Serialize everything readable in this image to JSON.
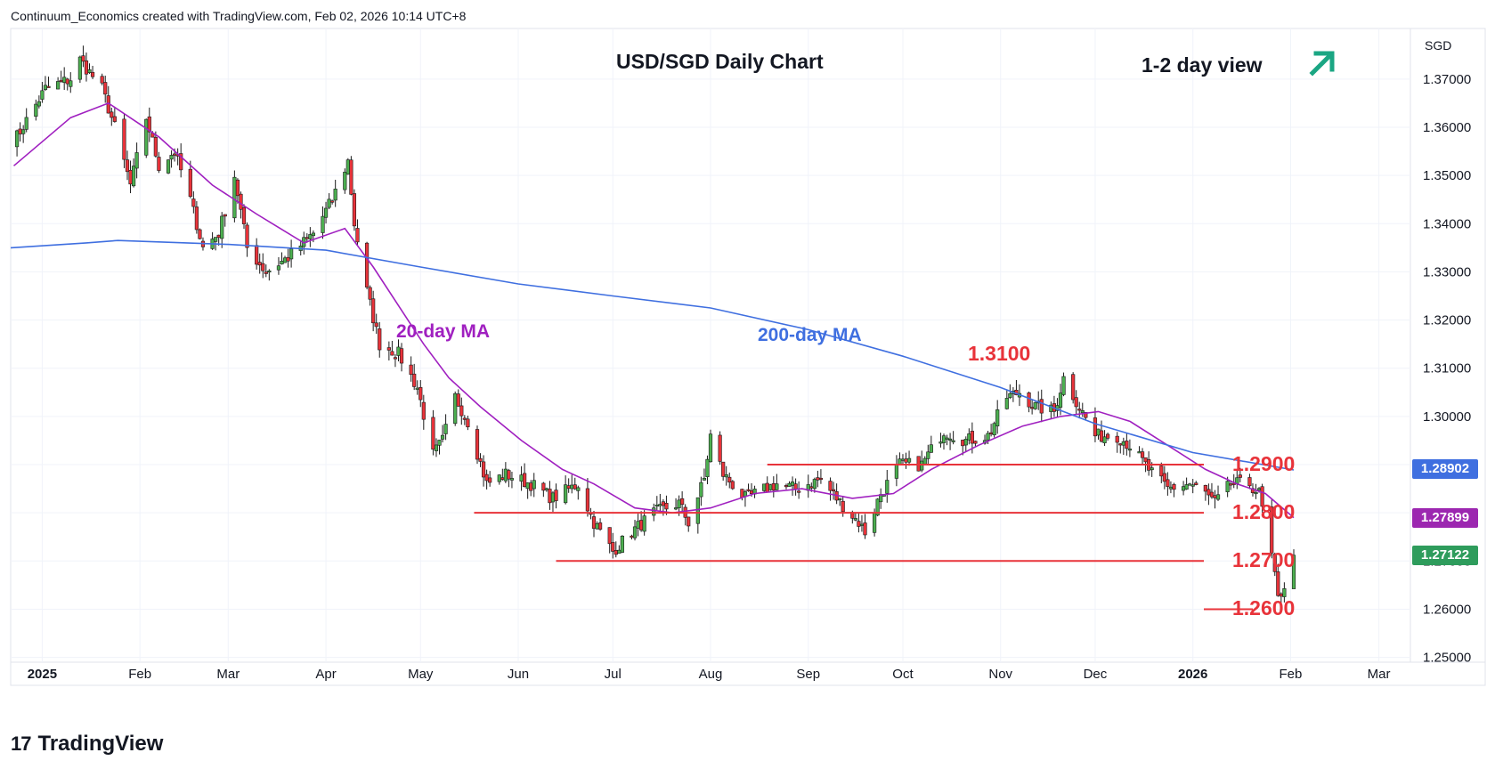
{
  "header": {
    "attribution": "Continuum_Economics created with TradingView.com, Feb 02, 2026 10:14 UTC+8"
  },
  "chart_header": {
    "title": "USD/SGD Daily Chart",
    "view_label": "1-2 day view",
    "view_icon": "arrow-up-right-icon"
  },
  "brand": {
    "name": "TradingView",
    "logo_text": "17"
  },
  "colors": {
    "up_candle": "#4caf50",
    "down_candle": "#e8333a",
    "ma20": "#a020c0",
    "ma200": "#3f6fe0",
    "level_line": "#e8333a",
    "arrow": "#1aa683",
    "price_badge": "#2e9c5c",
    "ma200_badge": "#3f6fe0",
    "ma20_badge": "#9c27b0"
  },
  "chart_data": {
    "type": "candlestick",
    "title": "USD/SGD Daily Chart",
    "price_scale_unit": "SGD",
    "ylim": [
      1.249,
      1.3805
    ],
    "y_ticks": [
      "1.37000",
      "1.36000",
      "1.35000",
      "1.34000",
      "1.33000",
      "1.32000",
      "1.31000",
      "1.30000",
      "1.29000",
      "1.28000",
      "1.27000",
      "1.26000",
      "1.25000"
    ],
    "x_ticks": [
      "2025",
      "Feb",
      "Mar",
      "Apr",
      "May",
      "Jun",
      "Jul",
      "Aug",
      "Sep",
      "Oct",
      "Nov",
      "Dec",
      "2026",
      "Feb",
      "Mar"
    ],
    "x_tick_dates": [
      "2025-01-01",
      "2025-02-01",
      "2025-03-01",
      "2025-04-01",
      "2025-05-01",
      "2025-06-01",
      "2025-07-01",
      "2025-08-01",
      "2025-09-01",
      "2025-10-01",
      "2025-11-01",
      "2025-12-01",
      "2026-01-01",
      "2026-02-01",
      "2026-03-01"
    ],
    "x_range": [
      "2024-12-22",
      "2026-03-11"
    ],
    "price_path": [
      [
        "2024-12-23",
        1.357
      ],
      [
        "2025-01-02",
        1.368
      ],
      [
        "2025-01-10",
        1.37
      ],
      [
        "2025-01-13",
        1.374
      ],
      [
        "2025-01-20",
        1.368
      ],
      [
        "2025-01-24",
        1.36
      ],
      [
        "2025-01-29",
        1.348
      ],
      [
        "2025-02-03",
        1.362
      ],
      [
        "2025-02-07",
        1.352
      ],
      [
        "2025-02-12",
        1.355
      ],
      [
        "2025-02-17",
        1.345
      ],
      [
        "2025-02-21",
        1.335
      ],
      [
        "2025-02-26",
        1.338
      ],
      [
        "2025-03-03",
        1.35
      ],
      [
        "2025-03-07",
        1.335
      ],
      [
        "2025-03-13",
        1.33
      ],
      [
        "2025-03-20",
        1.333
      ],
      [
        "2025-03-28",
        1.338
      ],
      [
        "2025-04-03",
        1.345
      ],
      [
        "2025-04-08",
        1.353
      ],
      [
        "2025-04-10",
        1.34
      ],
      [
        "2025-04-14",
        1.326
      ],
      [
        "2025-04-18",
        1.315
      ],
      [
        "2025-04-24",
        1.313
      ],
      [
        "2025-04-30",
        1.306
      ],
      [
        "2025-05-05",
        1.292
      ],
      [
        "2025-05-08",
        1.295
      ],
      [
        "2025-05-12",
        1.304
      ],
      [
        "2025-05-16",
        1.299
      ],
      [
        "2025-05-22",
        1.286
      ],
      [
        "2025-05-28",
        1.288
      ],
      [
        "2025-06-05",
        1.286
      ],
      [
        "2025-06-12",
        1.283
      ],
      [
        "2025-06-20",
        1.286
      ],
      [
        "2025-06-25",
        1.278
      ],
      [
        "2025-07-01",
        1.272
      ],
      [
        "2025-07-07",
        1.276
      ],
      [
        "2025-07-14",
        1.28
      ],
      [
        "2025-07-22",
        1.282
      ],
      [
        "2025-07-25",
        1.278
      ],
      [
        "2025-07-30",
        1.287
      ],
      [
        "2025-08-01",
        1.296
      ],
      [
        "2025-08-05",
        1.288
      ],
      [
        "2025-08-12",
        1.283
      ],
      [
        "2025-08-22",
        1.286
      ],
      [
        "2025-08-28",
        1.285
      ],
      [
        "2025-09-05",
        1.287
      ],
      [
        "2025-09-10",
        1.283
      ],
      [
        "2025-09-17",
        1.278
      ],
      [
        "2025-09-19",
        1.276
      ],
      [
        "2025-09-24",
        1.284
      ],
      [
        "2025-09-30",
        1.29
      ],
      [
        "2025-10-07",
        1.29
      ],
      [
        "2025-10-14",
        1.297
      ],
      [
        "2025-10-21",
        1.295
      ],
      [
        "2025-10-28",
        1.296
      ],
      [
        "2025-11-03",
        1.304
      ],
      [
        "2025-11-07",
        1.305
      ],
      [
        "2025-11-12",
        1.302
      ],
      [
        "2025-11-18",
        1.301
      ],
      [
        "2025-11-21",
        1.308
      ],
      [
        "2025-11-26",
        1.302
      ],
      [
        "2025-12-01",
        1.296
      ],
      [
        "2025-12-08",
        1.296
      ],
      [
        "2025-12-12",
        1.294
      ],
      [
        "2025-12-18",
        1.289
      ],
      [
        "2025-12-24",
        1.285
      ],
      [
        "2025-12-31",
        1.286
      ],
      [
        "2026-01-05",
        1.284
      ],
      [
        "2026-01-08",
        1.282
      ],
      [
        "2026-01-13",
        1.286
      ],
      [
        "2026-01-19",
        1.286
      ],
      [
        "2026-01-22",
        1.284
      ],
      [
        "2026-01-26",
        1.271
      ],
      [
        "2026-01-28",
        1.262
      ],
      [
        "2026-01-30",
        1.265
      ],
      [
        "2026-02-02",
        1.2712
      ]
    ],
    "moving_averages": [
      {
        "name": "20-day MA",
        "color": "#a020c0",
        "points": [
          [
            "2024-12-23",
            1.352
          ],
          [
            "2025-01-10",
            1.362
          ],
          [
            "2025-01-22",
            1.365
          ],
          [
            "2025-02-07",
            1.358
          ],
          [
            "2025-02-24",
            1.348
          ],
          [
            "2025-03-10",
            1.342
          ],
          [
            "2025-03-25",
            1.336
          ],
          [
            "2025-04-07",
            1.339
          ],
          [
            "2025-04-16",
            1.331
          ],
          [
            "2025-04-24",
            1.323
          ],
          [
            "2025-05-02",
            1.315
          ],
          [
            "2025-05-10",
            1.308
          ],
          [
            "2025-05-20",
            1.302
          ],
          [
            "2025-06-02",
            1.295
          ],
          [
            "2025-06-15",
            1.289
          ],
          [
            "2025-06-25",
            1.286
          ],
          [
            "2025-07-08",
            1.281
          ],
          [
            "2025-07-20",
            1.28
          ],
          [
            "2025-08-01",
            1.281
          ],
          [
            "2025-08-15",
            1.284
          ],
          [
            "2025-08-30",
            1.285
          ],
          [
            "2025-09-15",
            1.283
          ],
          [
            "2025-09-28",
            1.284
          ],
          [
            "2025-10-10",
            1.289
          ],
          [
            "2025-10-25",
            1.294
          ],
          [
            "2025-11-08",
            1.298
          ],
          [
            "2025-11-20",
            1.3
          ],
          [
            "2025-12-02",
            1.301
          ],
          [
            "2025-12-12",
            1.299
          ],
          [
            "2025-12-24",
            1.294
          ],
          [
            "2026-01-05",
            1.289
          ],
          [
            "2026-01-15",
            1.286
          ],
          [
            "2026-01-24",
            1.284
          ],
          [
            "2026-02-02",
            1.279
          ]
        ]
      },
      {
        "name": "200-day MA",
        "color": "#3f6fe0",
        "points": [
          [
            "2024-12-22",
            1.335
          ],
          [
            "2025-01-15",
            1.336
          ],
          [
            "2025-01-25",
            1.3365
          ],
          [
            "2025-03-01",
            1.3357
          ],
          [
            "2025-04-01",
            1.3345
          ],
          [
            "2025-05-01",
            1.331
          ],
          [
            "2025-06-01",
            1.3275
          ],
          [
            "2025-07-01",
            1.325
          ],
          [
            "2025-08-01",
            1.3225
          ],
          [
            "2025-09-01",
            1.318
          ],
          [
            "2025-10-01",
            1.3125
          ],
          [
            "2025-11-01",
            1.306
          ],
          [
            "2025-12-01",
            1.2985
          ],
          [
            "2026-01-01",
            1.2925
          ],
          [
            "2026-02-02",
            1.2889
          ]
        ]
      }
    ],
    "levels": [
      {
        "value": 1.29,
        "label": "1.2900",
        "from": "2025-08-19"
      },
      {
        "value": 1.28,
        "label": "1.2800",
        "from": "2025-05-18"
      },
      {
        "value": 1.27,
        "label": "1.2700",
        "from": "2025-06-13"
      },
      {
        "value": 1.26,
        "label": "1.2600",
        "from": "2026-01-20"
      }
    ],
    "annotations": [
      {
        "text": "1.3100",
        "x": "2025-11-27",
        "y": 1.31
      },
      {
        "text": "20-day MA",
        "x": "2025-05-21",
        "y": 1.3175
      },
      {
        "text": "200-day MA",
        "x": "2025-09-08",
        "y": 1.3167
      }
    ],
    "price_badges": [
      {
        "label": "1.28902",
        "value": 1.28902,
        "kind": "ma200"
      },
      {
        "label": "1.27899",
        "value": 1.27899,
        "kind": "ma20"
      },
      {
        "label": "1.27122",
        "value": 1.27122,
        "kind": "price"
      }
    ],
    "grid": true,
    "legend": "none"
  }
}
